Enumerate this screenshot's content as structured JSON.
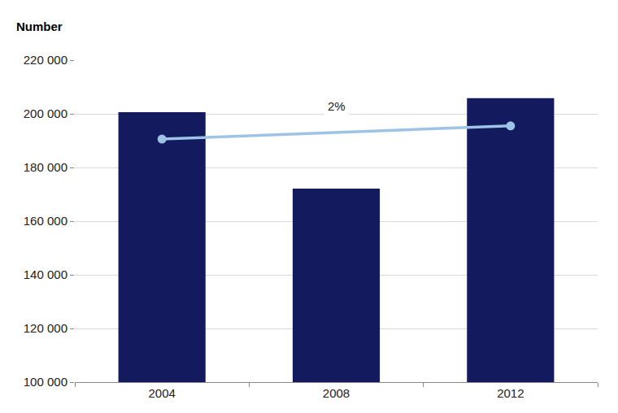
{
  "chart_data": {
    "type": "bar",
    "y_label": "Number",
    "categories": [
      "2004",
      "2008",
      "2012"
    ],
    "series": [
      {
        "type": "bar",
        "color": "#141a5e",
        "values": [
          200600,
          172100,
          205800
        ]
      },
      {
        "type": "line",
        "color": "#9dc3e6",
        "marker": "circle",
        "line_style": "solid",
        "values": [
          190600,
          null,
          195500
        ]
      }
    ],
    "annotations": [
      {
        "text": "2%",
        "category": "2008",
        "value": 203000
      }
    ],
    "ylim": [
      100000,
      220000
    ],
    "yticks": [
      {
        "value": 100000,
        "label": "100 000"
      },
      {
        "value": 120000,
        "label": "120 000"
      },
      {
        "value": 140000,
        "label": "140 000"
      },
      {
        "value": 160000,
        "label": "160 000"
      },
      {
        "value": 180000,
        "label": "180 000"
      },
      {
        "value": 200000,
        "label": "200 000"
      },
      {
        "value": 220000,
        "label": "220 000"
      }
    ],
    "grid": true
  }
}
